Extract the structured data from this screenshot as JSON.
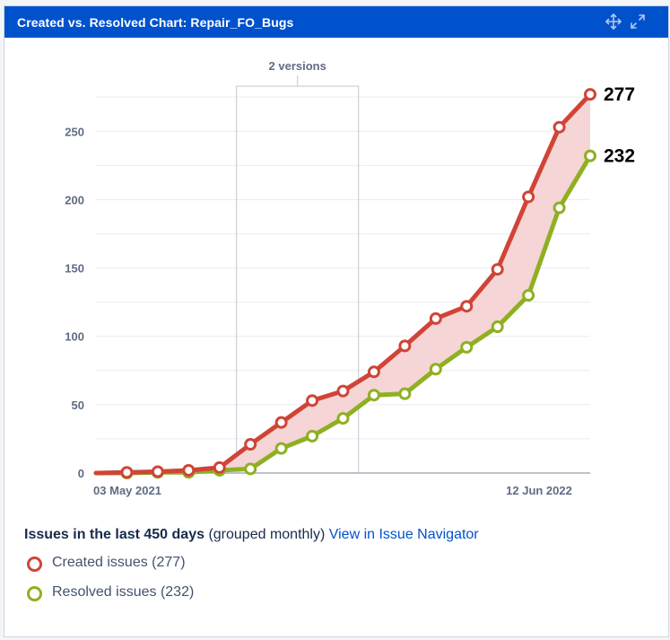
{
  "gadget": {
    "title": "Created vs. Resolved Chart: Repair_FO_Bugs",
    "icons": [
      "move-icon",
      "maximize-icon"
    ]
  },
  "colors": {
    "header": "#0052cc",
    "created": "#d04437",
    "resolved": "#8eb021",
    "fill": "#f5d5d5",
    "link": "#0052cc"
  },
  "chart_data": {
    "type": "line",
    "title": "",
    "xlabel": "",
    "ylabel": "",
    "x_tick_labels": [
      "03 May 2021",
      "12 Jun 2022"
    ],
    "ylim": [
      0,
      283
    ],
    "yticks": [
      0,
      50,
      100,
      150,
      200,
      250
    ],
    "grid": true,
    "version_marker": {
      "label": "2 versions"
    },
    "series": [
      {
        "name": "Created issues",
        "values": [
          0,
          0.5,
          1,
          2,
          4,
          21,
          37,
          53,
          60,
          74,
          93,
          113,
          122,
          149,
          202,
          253,
          277
        ],
        "end_label": "277"
      },
      {
        "name": "Resolved issues",
        "values": [
          0,
          0,
          0.5,
          0.5,
          2,
          3,
          18,
          27,
          40,
          57,
          58,
          76,
          92,
          107,
          130,
          194,
          232
        ],
        "end_label": "232"
      }
    ]
  },
  "legend": {
    "title_bold": "Issues in the last 450 days",
    "title_rest": " (grouped monthly) ",
    "link": "View in Issue Navigator",
    "items": [
      {
        "label": "Created issues (277)"
      },
      {
        "label": "Resolved issues (232)"
      }
    ]
  }
}
